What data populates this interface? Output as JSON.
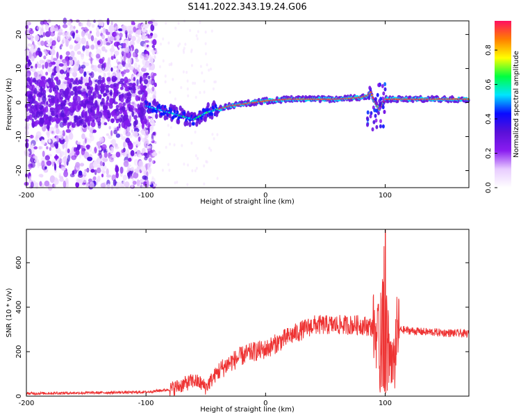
{
  "title": "S141.2022.343.19.24.G06",
  "colorbar": {
    "label": "Normalized spectral amplitude",
    "ticks": [
      "0.0",
      "0.2",
      "0.4",
      "0.6",
      "0.8"
    ],
    "tick_values": [
      0.0,
      0.2,
      0.4,
      0.6,
      0.8
    ],
    "range": [
      0,
      0.97
    ],
    "colormap": [
      "#ffffff",
      "#e8ccff",
      "#8a1cf0",
      "#5a10d8",
      "#0a0aff",
      "#00e5ff",
      "#00ff40",
      "#ffff00",
      "#ff7f00",
      "#ff1060"
    ]
  },
  "chart_data": [
    {
      "type": "heatmap",
      "xlabel": "Height of straight line (km)",
      "ylabel": "Frequency (Hz)",
      "xlim": [
        -200,
        170
      ],
      "ylim": [
        -25,
        24
      ],
      "xticks": [
        "-200",
        "-100",
        "0",
        "100"
      ],
      "xtick_values": [
        -200,
        -100,
        0,
        100
      ],
      "yticks": [
        "20",
        "10",
        "0",
        "-10",
        "-20"
      ],
      "ytick_values": [
        20,
        10,
        0,
        -10,
        -20
      ],
      "ridge": {
        "x": [
          -100,
          -90,
          -80,
          -70,
          -60,
          -55,
          -50,
          -40,
          -30,
          -20,
          -10,
          0,
          20,
          40,
          60,
          80,
          85,
          88,
          90,
          95,
          100,
          120,
          140,
          160,
          170
        ],
        "y": [
          -1,
          -2,
          -3,
          -4,
          -5,
          -4,
          -3,
          -2,
          -1,
          -0.5,
          0,
          0.5,
          1,
          1,
          1,
          1.5,
          2,
          3,
          1,
          -2,
          1,
          1,
          1,
          1,
          1
        ]
      },
      "noise_region_x": [
        -200,
        -100
      ]
    },
    {
      "type": "line",
      "xlabel": "Height of straight line (km)",
      "ylabel": "SNR (10 * v/v)",
      "xlim": [
        -200,
        170
      ],
      "ylim": [
        0,
        750
      ],
      "xticks": [
        "-200",
        "-100",
        "0",
        "100"
      ],
      "xtick_values": [
        -200,
        -100,
        0,
        100
      ],
      "yticks": [
        "0",
        "200",
        "400",
        "600"
      ],
      "ytick_values": [
        0,
        200,
        400,
        600
      ],
      "color": "#ee3333",
      "trend": {
        "x": [
          -200,
          -150,
          -100,
          -80,
          -70,
          -60,
          -55,
          -50,
          -40,
          -30,
          -20,
          -10,
          0,
          20,
          40,
          60,
          80,
          90,
          95,
          98,
          100,
          102,
          105,
          110,
          130,
          150,
          170
        ],
        "y": [
          12,
          15,
          18,
          30,
          50,
          70,
          60,
          40,
          110,
          150,
          180,
          200,
          210,
          270,
          320,
          320,
          320,
          310,
          250,
          400,
          740,
          300,
          150,
          300,
          290,
          285,
          280
        ]
      }
    }
  ]
}
